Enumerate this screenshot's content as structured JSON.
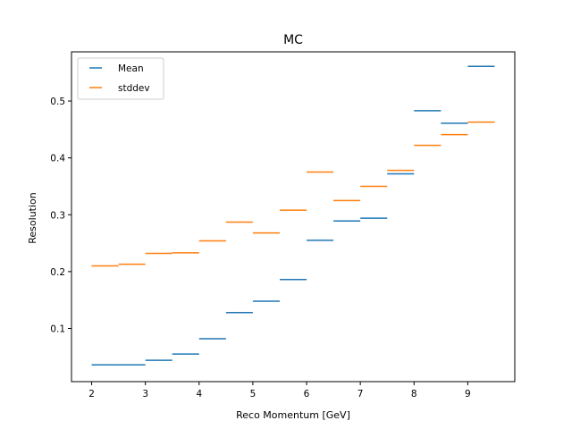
{
  "chart_data": {
    "type": "line",
    "title": "MC",
    "xlabel": "Reco Momentum [GeV]",
    "ylabel": "Resolution",
    "xlim": [
      1.625,
      9.875
    ],
    "ylim": [
      0.0065,
      0.5865
    ],
    "xticks": [
      2,
      3,
      4,
      5,
      6,
      7,
      8,
      9
    ],
    "yticks": [
      0.1,
      0.2,
      0.3,
      0.4,
      0.5
    ],
    "grid": false,
    "legend_position": "top-left",
    "bin_edges": [
      2.0,
      2.5,
      3.0,
      3.5,
      4.0,
      4.5,
      5.0,
      5.5,
      6.0,
      6.5,
      7.0,
      7.5,
      8.0,
      8.5,
      9.0,
      9.5
    ],
    "series": [
      {
        "name": "Mean",
        "color": "#1f77b4",
        "values": [
          0.036,
          0.036,
          0.044,
          0.055,
          0.082,
          0.128,
          0.148,
          0.186,
          0.255,
          0.289,
          0.294,
          0.372,
          0.483,
          0.461,
          0.561
        ]
      },
      {
        "name": "stddev",
        "color": "#ff7f0e",
        "values": [
          0.21,
          0.213,
          0.232,
          0.233,
          0.254,
          0.287,
          0.268,
          0.308,
          0.375,
          0.325,
          0.35,
          0.378,
          0.422,
          0.441,
          0.463
        ]
      }
    ]
  }
}
